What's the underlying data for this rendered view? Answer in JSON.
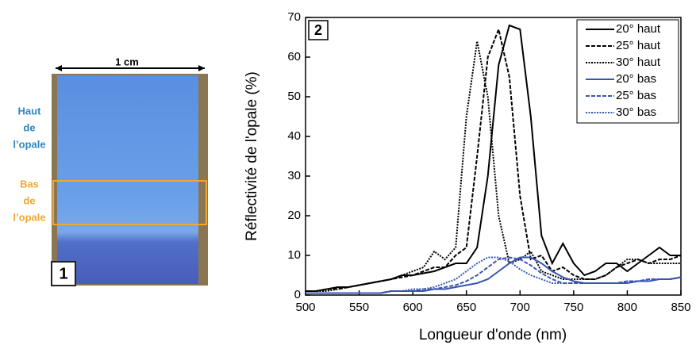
{
  "photo": {
    "scale_label": "1 cm",
    "top_label": [
      "Haut",
      "de",
      "l’opale"
    ],
    "bottom_label": [
      "Bas",
      "de",
      "l’opale"
    ],
    "panel_label": "1"
  },
  "chart_data": {
    "type": "line",
    "panel_label": "2",
    "x_label": "Longueur d'onde (nm)",
    "y_label": "Réflectivité de l'opale (%)",
    "x": [
      500,
      510,
      520,
      530,
      540,
      550,
      560,
      570,
      580,
      590,
      600,
      610,
      620,
      630,
      640,
      650,
      660,
      670,
      680,
      690,
      700,
      710,
      720,
      730,
      740,
      750,
      760,
      770,
      780,
      790,
      800,
      810,
      820,
      830,
      840,
      850
    ],
    "xlim": [
      500,
      850
    ],
    "xticks": [
      500,
      550,
      600,
      650,
      700,
      750,
      800,
      850
    ],
    "ylim": [
      0,
      70
    ],
    "yticks": [
      0,
      10,
      20,
      30,
      40,
      50,
      60,
      70
    ],
    "legend": "upper right",
    "series": [
      {
        "name": "20° haut",
        "color": "#000000",
        "style": "solid",
        "values": [
          1,
          1,
          1.5,
          2,
          2,
          2.5,
          3,
          3.5,
          4,
          5,
          5,
          5.5,
          6,
          7,
          8,
          8,
          12,
          30,
          58,
          68,
          67,
          45,
          15,
          8,
          13,
          8,
          5,
          6,
          8,
          8,
          6,
          8,
          10,
          12,
          10,
          10
        ]
      },
      {
        "name": "25° haut",
        "color": "#000000",
        "style": "dash",
        "values": [
          1,
          1,
          1.5,
          1.5,
          2,
          2.5,
          3,
          3.5,
          4,
          4.5,
          5,
          6,
          7,
          7,
          10,
          12,
          35,
          60,
          67,
          55,
          25,
          9,
          10,
          6,
          7,
          5,
          4,
          4,
          5,
          7,
          8,
          9,
          8,
          9,
          9,
          10
        ]
      },
      {
        "name": "30° haut",
        "color": "#000000",
        "style": "dot",
        "values": [
          1,
          1,
          1,
          1.5,
          2,
          2.5,
          3,
          3.5,
          4,
          5,
          6,
          7,
          11,
          9,
          12,
          45,
          64,
          50,
          20,
          8,
          9,
          11,
          6,
          5,
          4,
          4,
          4,
          4,
          5,
          7,
          9,
          9,
          8,
          8,
          8,
          8
        ]
      },
      {
        "name": "20° bas",
        "color": "#3a55b4",
        "style": "solid",
        "values": [
          0.5,
          0.5,
          0.5,
          0.5,
          0.5,
          0.5,
          0.5,
          0.5,
          1,
          1,
          1,
          1,
          1.5,
          1.5,
          2,
          2.5,
          3,
          4,
          6,
          8,
          9.5,
          9.5,
          8,
          6,
          4.5,
          3.5,
          3,
          3,
          3,
          3,
          3,
          3.5,
          3.5,
          4,
          4,
          4.5
        ]
      },
      {
        "name": "25° bas",
        "color": "#3a55b4",
        "style": "dash",
        "values": [
          0.5,
          0.5,
          0.5,
          0.5,
          0.5,
          0.5,
          0.5,
          0.5,
          1,
          1,
          1,
          1.5,
          1.5,
          2,
          2.5,
          3.5,
          5,
          7,
          9,
          9.5,
          9,
          7.5,
          5.5,
          4,
          3,
          3,
          3,
          3,
          3,
          3,
          3.5,
          3.5,
          4,
          4,
          4,
          4.5
        ]
      },
      {
        "name": "30° bas",
        "color": "#3a55b4",
        "style": "dot",
        "values": [
          0.5,
          0.5,
          0.5,
          0.5,
          0.5,
          0.5,
          0.5,
          0.5,
          1,
          1,
          1.5,
          1.5,
          2,
          3,
          4,
          6,
          8,
          9.5,
          9.5,
          8.5,
          6.5,
          5,
          4,
          3,
          3,
          3,
          3,
          3,
          3,
          3,
          3.5,
          3.5,
          4,
          4,
          4,
          4.5
        ]
      }
    ]
  }
}
